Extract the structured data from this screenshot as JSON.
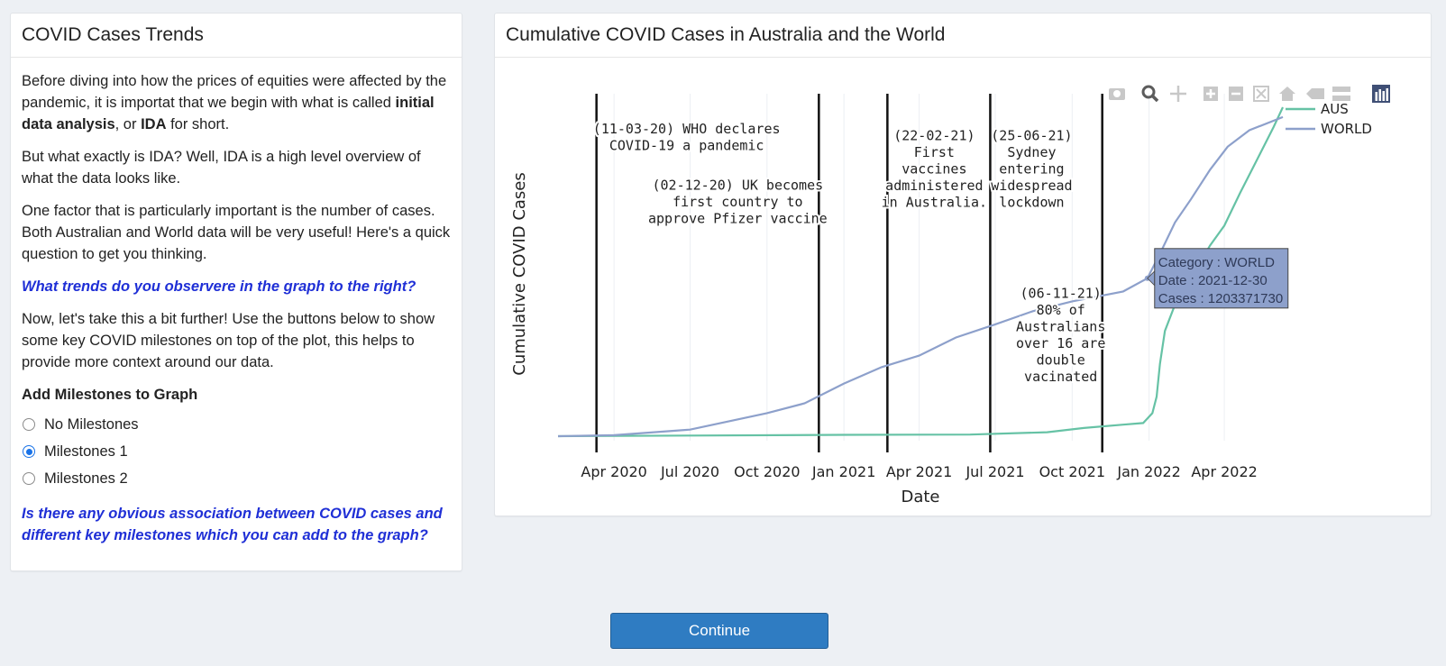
{
  "left_panel": {
    "title": "COVID Cases Trends",
    "p1_a": "Before diving into how the prices of equities were affected by the pandemic, it is importat that we begin with what is called ",
    "p1_bold1": "initial data analysis",
    "p1_b": ", or ",
    "p1_bold2": "IDA",
    "p1_c": " for short.",
    "p2": "But what exactly is IDA? Well, IDA is a high level overview of what the data looks like.",
    "p3": "One factor that is particularly important is the number of cases. Both Australian and World data will be very useful! Here's a quick question to get you thinking.",
    "question1": "What trends do you observere in the graph to the right?",
    "p4": "Now, let's take this a bit further! Use the buttons below to show some key COVID milestones on top of the plot, this helps to provide more context around our data.",
    "milestones_label": "Add Milestones to Graph",
    "options": [
      "No Milestones",
      "Milestones 1",
      "Milestones 2"
    ],
    "selected_option": "Milestones 1",
    "question2": "Is there any obvious association between COVID cases and different key milestones which you can add to the graph?"
  },
  "right_panel": {
    "title": "Cumulative COVID Cases in Australia and the World"
  },
  "modebar_icons": [
    "camera-icon",
    "zoom-icon",
    "pan-icon",
    "zoom-in-icon",
    "zoom-out-icon",
    "autoscale-icon",
    "reset-axes-icon",
    "spike-lines-icon",
    "compare-hover-icon",
    "plotly-logo-icon"
  ],
  "chart_data": {
    "type": "line",
    "title": "",
    "xlabel": "Date",
    "ylabel": "Cumulative COVID Cases",
    "x_ticks": [
      "Apr 2020",
      "Jul 2020",
      "Oct 2020",
      "Jan 2021",
      "Apr 2021",
      "Jul 2021",
      "Oct 2021",
      "Jan 2022",
      "Apr 2022"
    ],
    "grid": "vertical",
    "legend_position": "top-right",
    "series": [
      {
        "name": "AUS",
        "color": "#66c2a5",
        "points": [
          [
            "2020-01-25",
            0
          ],
          [
            "2020-07-01",
            0.002
          ],
          [
            "2021-01-01",
            0.004
          ],
          [
            "2021-06-01",
            0.005
          ],
          [
            "2021-09-01",
            0.012
          ],
          [
            "2021-10-15",
            0.025
          ],
          [
            "2021-12-01",
            0.035
          ],
          [
            "2021-12-25",
            0.04
          ],
          [
            "2022-01-05",
            0.07
          ],
          [
            "2022-01-10",
            0.12
          ],
          [
            "2022-01-14",
            0.22
          ],
          [
            "2022-01-20",
            0.32
          ],
          [
            "2022-02-01",
            0.4
          ],
          [
            "2022-02-15",
            0.45
          ],
          [
            "2022-03-01",
            0.52
          ],
          [
            "2022-03-15",
            0.58
          ],
          [
            "2022-04-01",
            0.64
          ],
          [
            "2022-04-20",
            0.74
          ],
          [
            "2022-05-10",
            0.84
          ],
          [
            "2022-05-30",
            0.94
          ],
          [
            "2022-06-10",
            1.0
          ]
        ]
      },
      {
        "name": "WORLD",
        "color": "#8da0cb",
        "points": [
          [
            "2020-01-25",
            0
          ],
          [
            "2020-04-01",
            0.003
          ],
          [
            "2020-07-01",
            0.02
          ],
          [
            "2020-10-01",
            0.07
          ],
          [
            "2020-11-15",
            0.1
          ],
          [
            "2021-01-01",
            0.16
          ],
          [
            "2021-02-15",
            0.21
          ],
          [
            "2021-04-01",
            0.245
          ],
          [
            "2021-05-15",
            0.3
          ],
          [
            "2021-07-01",
            0.34
          ],
          [
            "2021-08-15",
            0.38
          ],
          [
            "2021-10-01",
            0.41
          ],
          [
            "2021-12-01",
            0.44
          ],
          [
            "2021-12-30",
            0.48
          ],
          [
            "2022-01-15",
            0.56
          ],
          [
            "2022-02-01",
            0.65
          ],
          [
            "2022-02-20",
            0.72
          ],
          [
            "2022-03-15",
            0.81
          ],
          [
            "2022-04-05",
            0.88
          ],
          [
            "2022-05-01",
            0.93
          ],
          [
            "2022-06-10",
            0.97
          ]
        ]
      }
    ],
    "milestones": [
      {
        "date": "2020-03-11",
        "label": [
          "(11-03-20) WHO declares",
          "COVID-19 a pandemic"
        ],
        "label_y": 0.92
      },
      {
        "date": "2020-12-02",
        "label": [
          "(02-12-20) UK becomes",
          "first country to",
          "approve Pfizer vaccine"
        ],
        "label_y": 0.75
      },
      {
        "date": "2021-02-22",
        "label": [
          "(22-02-21)",
          "First",
          "vaccines",
          "administered",
          "in Australia."
        ],
        "label_y": 0.9
      },
      {
        "date": "2021-06-25",
        "label": [
          "(25-06-21)",
          "Sydney",
          "entering",
          "widespread",
          "lockdown"
        ],
        "label_y": 0.9
      },
      {
        "date": "2021-11-06",
        "label": [
          "(06-11-21)",
          "80% of",
          "Australians",
          "over 16 are",
          "double",
          "vacinated"
        ],
        "label_y": 0.42
      }
    ],
    "tooltip": {
      "series": "WORLD",
      "date": "2021-12-30",
      "lines": [
        "Category : WORLD",
        "Date : 2021-12-30",
        "Cases : 1203371730"
      ]
    }
  },
  "continue_label": "Continue"
}
